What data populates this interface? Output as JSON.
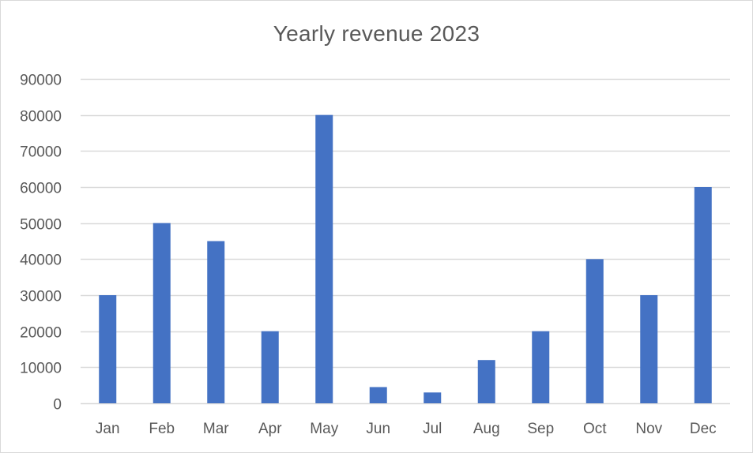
{
  "chart_data": {
    "type": "bar",
    "title": "Yearly revenue 2023",
    "xlabel": "",
    "ylabel": "",
    "categories": [
      "Jan",
      "Feb",
      "Mar",
      "Apr",
      "May",
      "Jun",
      "Jul",
      "Aug",
      "Sep",
      "Oct",
      "Nov",
      "Dec"
    ],
    "values": [
      30000,
      50000,
      45000,
      20000,
      80000,
      4500,
      3000,
      12000,
      20000,
      40000,
      30000,
      60000
    ],
    "ylim": [
      0,
      90000
    ],
    "yticks": [
      "0",
      "10000",
      "20000",
      "30000",
      "40000",
      "50000",
      "60000",
      "70000",
      "80000",
      "90000"
    ],
    "grid": "horizontal",
    "legend": "none",
    "colors": {
      "bar": "#4472c4",
      "grid": "#d9d9d9",
      "text": "#595959"
    }
  }
}
